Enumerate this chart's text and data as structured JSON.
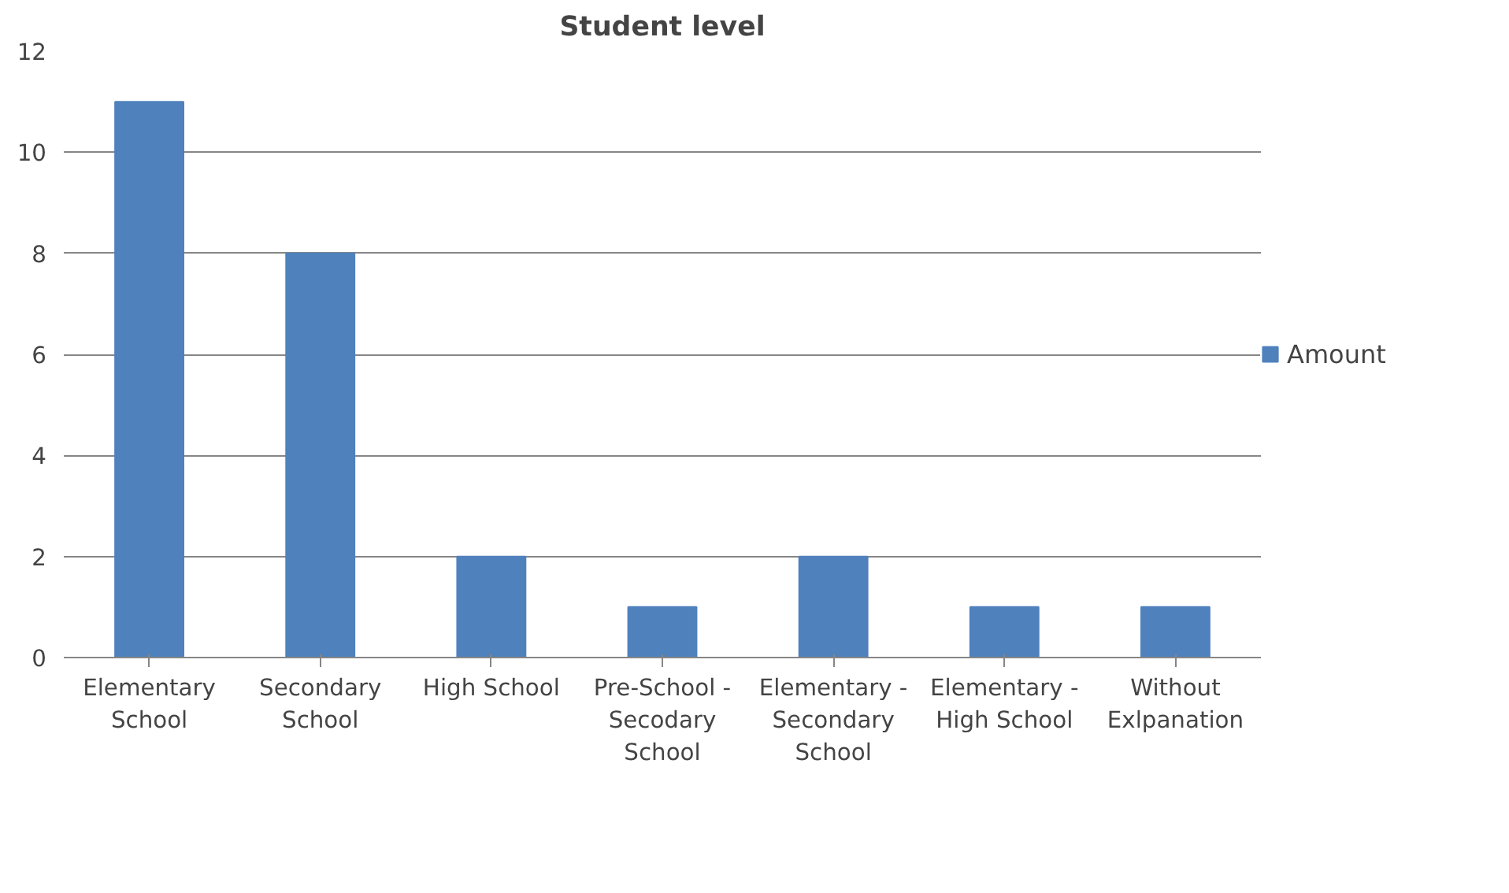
{
  "chart_data": {
    "type": "bar",
    "title": "Student level",
    "categories": [
      "Elementary School",
      "Secondary School",
      "High School",
      "Pre-School - Secodary School",
      "Elementary - Secondary School",
      "Elementary - High School",
      "Without Exlpanation"
    ],
    "series": [
      {
        "name": "Amount",
        "color": "#4f81bd",
        "values": [
          11,
          8,
          2,
          1,
          2,
          1,
          1
        ]
      }
    ],
    "ylim": [
      0,
      12
    ],
    "yticks": [
      0,
      2,
      4,
      6,
      8,
      10,
      12
    ],
    "grid": "y",
    "legend": "right"
  }
}
